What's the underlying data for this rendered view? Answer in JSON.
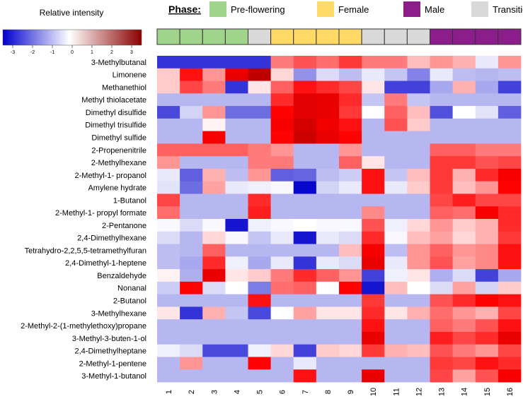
{
  "chart_data": {
    "type": "heatmap",
    "title": "",
    "xlabel": "",
    "ylabel": "",
    "scale": {
      "title": "Relative intensity",
      "min": -3.5,
      "max": 3.5,
      "ticks": [
        "-3",
        "-2",
        "-1",
        "0",
        "1",
        "2",
        "3"
      ],
      "low_color": "#0000cd",
      "mid_color": "#ffffff",
      "high_color": "#8b0000"
    },
    "phase_legend": {
      "title": "Phase:",
      "items": [
        {
          "label": "Pre-flowering",
          "color": "#9fd48a"
        },
        {
          "label": "Female",
          "color": "#ffd966"
        },
        {
          "label": "Male",
          "color": "#8b1e8b"
        },
        {
          "label": "Transition",
          "color": "#d9d9d9"
        }
      ]
    },
    "phases": [
      "Pre-flowering",
      "Pre-flowering",
      "Pre-flowering",
      "Pre-flowering",
      "Transition",
      "Female",
      "Female",
      "Female",
      "Female",
      "Transition",
      "Transition",
      "Transition",
      "Male",
      "Male",
      "Male",
      "Male"
    ],
    "columns": [
      "1",
      "2",
      "3",
      "4",
      "5",
      "6",
      "7",
      "8",
      "9",
      "10",
      "11",
      "12",
      "13",
      "14",
      "15",
      "16"
    ],
    "rows": [
      "3-Methylbutanal",
      "Limonene",
      "Methanethiol",
      "Methyl thiolacetate",
      "Dimethyl disulfide",
      "Dimethyl trisulfide",
      "Dimethyl sulfide",
      "2-Propenenitrile",
      "2-Methylhexane",
      "2-Methyl-1- propanol",
      "Amylene hydrate",
      "1-Butanol",
      "2-Methyl-1- propyl formate",
      "2-Pentanone",
      "2,4-Dimethylhexane",
      "Tetrahydro-2,2,5,5-tetramethylfuran",
      "2,4-Dimethyl-1-heptene",
      "Benzaldehyde",
      "Nonanal",
      "2-Butanol",
      "3-Methylhexane",
      "2-Methyl-2-(1-methylethoxy)propane",
      "3-Methyl-3-buten-1-ol",
      "2,4-Dimethylheptane",
      "2-Methyl-1-pentene",
      "3-Methyl-1-butanol"
    ],
    "values": [
      [
        -2.8,
        -2.8,
        -2.8,
        -2.8,
        -2.8,
        1.0,
        1.3,
        1.1,
        1.5,
        1.0,
        1.0,
        0.5,
        0.8,
        0.6,
        -0.3,
        0.8
      ],
      [
        0.4,
        1.8,
        0.8,
        2.2,
        2.8,
        0.3,
        -1.5,
        -0.5,
        -0.9,
        -0.3,
        -0.8,
        -1.7,
        -0.3,
        -0.9,
        -1.0,
        -0.9
      ],
      [
        0.4,
        1.4,
        1.0,
        -2.8,
        0.2,
        1.2,
        1.8,
        1.6,
        1.4,
        0.2,
        -2.6,
        -2.6,
        -1.2,
        0.6,
        -1.2,
        -2.6
      ],
      [
        -1.0,
        -1.0,
        -1.0,
        -1.0,
        -1.0,
        1.6,
        2.3,
        2.2,
        1.6,
        -0.8,
        1.0,
        -0.8,
        -1.0,
        -1.0,
        -1.0,
        -1.0
      ],
      [
        -2.5,
        -0.6,
        0.8,
        -2.0,
        -2.0,
        1.9,
        2.3,
        2.2,
        1.5,
        0.0,
        1.2,
        0.5,
        -2.4,
        0.0,
        -0.4,
        -2.2
      ],
      [
        -1.0,
        -1.0,
        0.1,
        -1.0,
        -1.0,
        2.0,
        2.5,
        2.1,
        1.8,
        -1.0,
        1.3,
        0.4,
        -1.0,
        -1.0,
        -1.0,
        -1.0
      ],
      [
        -1.0,
        -1.0,
        2.0,
        -1.0,
        -1.0,
        1.9,
        2.6,
        2.2,
        1.9,
        -1.0,
        -1.0,
        -1.0,
        -1.0,
        -1.0,
        -1.0,
        -1.0
      ],
      [
        1.2,
        1.2,
        1.2,
        1.2,
        1.0,
        0.8,
        -1.0,
        -1.0,
        0.8,
        -1.0,
        -1.0,
        -1.0,
        1.2,
        1.2,
        1.0,
        1.0
      ],
      [
        0.8,
        -1.0,
        -1.0,
        -1.0,
        1.0,
        1.0,
        -1.0,
        -1.0,
        1.2,
        0.2,
        -1.0,
        -1.0,
        1.5,
        1.5,
        1.3,
        1.4
      ],
      [
        -0.3,
        -2.2,
        0.6,
        -0.9,
        0.8,
        -2.2,
        -2.1,
        -0.9,
        -0.7,
        1.8,
        -0.8,
        0.5,
        1.5,
        0.6,
        1.6,
        2.0
      ],
      [
        -0.4,
        -2.0,
        0.7,
        -0.3,
        -0.2,
        -0.1,
        -3.4,
        -0.6,
        -0.3,
        1.8,
        -0.3,
        0.4,
        1.5,
        0.5,
        0.8,
        1.9
      ],
      [
        1.4,
        -1.0,
        -1.0,
        -1.0,
        1.6,
        -1.0,
        -1.0,
        -1.0,
        -1.0,
        -1.0,
        -1.0,
        -1.0,
        1.4,
        1.7,
        1.4,
        1.4
      ],
      [
        1.1,
        -1.0,
        -1.0,
        -1.0,
        1.7,
        -1.0,
        -1.0,
        -1.0,
        -1.0,
        0.9,
        -1.0,
        -1.0,
        1.2,
        1.1,
        2.0,
        1.6
      ],
      [
        -0.1,
        -0.5,
        -0.1,
        -3.2,
        -0.2,
        -0.1,
        0.0,
        -0.1,
        -0.1,
        1.3,
        -0.2,
        0.3,
        0.8,
        0.4,
        0.6,
        1.6
      ],
      [
        -0.5,
        -1.0,
        0.3,
        -0.1,
        -0.8,
        -0.3,
        -3.2,
        -0.3,
        -0.5,
        1.6,
        -0.1,
        0.5,
        0.7,
        0.3,
        0.6,
        1.5
      ],
      [
        -0.9,
        -1.0,
        1.2,
        -1.0,
        -1.0,
        -1.0,
        -1.0,
        -1.0,
        0.5,
        2.0,
        -0.9,
        0.8,
        1.2,
        0.8,
        0.9,
        1.8
      ],
      [
        -0.9,
        -1.2,
        1.6,
        -0.2,
        -1.2,
        -0.3,
        -2.8,
        -0.3,
        -0.5,
        2.2,
        -0.3,
        0.8,
        1.3,
        0.7,
        0.9,
        1.8
      ],
      [
        0.1,
        -1.1,
        2.2,
        0.2,
        0.4,
        1.0,
        1.6,
        1.2,
        0.8,
        -2.6,
        -0.2,
        0.2,
        -1.1,
        -0.5,
        -2.6,
        -1.2
      ],
      [
        -0.7,
        1.9,
        -0.5,
        0.0,
        -1.8,
        1.1,
        1.2,
        0.0,
        1.9,
        -3.2,
        0.5,
        0.0,
        -0.5,
        0.7,
        -0.6,
        0.4
      ],
      [
        -1.0,
        -1.0,
        -1.0,
        -1.0,
        1.8,
        -1.0,
        -1.0,
        -1.0,
        -1.0,
        1.5,
        -1.0,
        -1.0,
        1.3,
        1.6,
        1.9,
        1.8
      ],
      [
        0.2,
        -2.8,
        0.6,
        -0.8,
        -2.5,
        0.0,
        0.7,
        0.2,
        0.2,
        1.6,
        0.2,
        0.6,
        1.1,
        0.8,
        0.6,
        1.4
      ],
      [
        -1.0,
        -1.0,
        -1.0,
        -1.0,
        -1.0,
        -1.0,
        -1.0,
        -1.0,
        -1.0,
        1.8,
        -1.0,
        -1.0,
        1.2,
        1.0,
        1.3,
        1.8
      ],
      [
        -1.0,
        -1.0,
        -1.0,
        -1.0,
        -1.0,
        -1.0,
        -1.0,
        -1.0,
        -1.0,
        2.2,
        -1.0,
        -1.0,
        1.7,
        1.4,
        1.6,
        2.2
      ],
      [
        -0.2,
        -0.5,
        -2.5,
        -2.5,
        -0.2,
        0.3,
        -2.6,
        0.4,
        0.3,
        1.5,
        0.6,
        0.5,
        1.3,
        1.0,
        0.8,
        1.4
      ],
      [
        -1.0,
        0.8,
        -1.0,
        -1.0,
        1.9,
        -1.0,
        -0.3,
        -1.0,
        -1.0,
        -1.0,
        -1.0,
        -1.0,
        1.5,
        1.4,
        1.8,
        1.6
      ],
      [
        -1.0,
        -1.0,
        -1.0,
        -1.0,
        -1.0,
        -1.0,
        1.8,
        -1.0,
        -1.0,
        2.2,
        -1.0,
        -1.0,
        1.4,
        0.7,
        1.3,
        2.0
      ]
    ]
  }
}
